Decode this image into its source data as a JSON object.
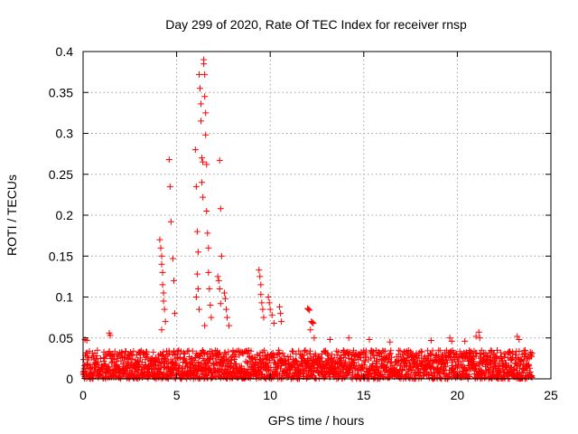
{
  "chart_data": {
    "type": "scatter",
    "title": "Day 299 of 2020, Rate Of TEC Index for receiver rnsp",
    "xlabel": "GPS time / hours",
    "ylabel": "ROTI / TECUs",
    "xlim": [
      0,
      25
    ],
    "ylim": [
      0,
      0.4
    ],
    "x_ticks": [
      0,
      5,
      10,
      15,
      20,
      25
    ],
    "y_ticks": [
      0,
      0.05,
      0.1,
      0.15,
      0.2,
      0.25,
      0.3,
      0.35,
      0.4
    ],
    "x_tick_labels": [
      "0",
      "5",
      "10",
      "15",
      "20",
      "25"
    ],
    "y_tick_labels": [
      "0",
      "0.05",
      "0.1",
      "0.15",
      "0.2",
      "0.25",
      "0.3",
      "0.35",
      "0.4"
    ],
    "grid": true,
    "marker": "+",
    "color": "#ff0000",
    "baseline": {
      "x_range": [
        0,
        24
      ],
      "y_range": [
        0,
        0.035
      ],
      "points_per_hour": 90,
      "note": "dense band of ROTI values between 0 and ~0.035 TECU/s for the whole day"
    },
    "points": [
      {
        "x": 0.1,
        "y": 0.048
      },
      {
        "x": 0.2,
        "y": 0.047
      },
      {
        "x": 1.4,
        "y": 0.056
      },
      {
        "x": 1.45,
        "y": 0.053
      },
      {
        "x": 4.1,
        "y": 0.17
      },
      {
        "x": 4.15,
        "y": 0.16
      },
      {
        "x": 4.2,
        "y": 0.15
      },
      {
        "x": 4.2,
        "y": 0.14
      },
      {
        "x": 4.25,
        "y": 0.13
      },
      {
        "x": 4.25,
        "y": 0.115
      },
      {
        "x": 4.3,
        "y": 0.105
      },
      {
        "x": 4.3,
        "y": 0.095
      },
      {
        "x": 4.35,
        "y": 0.085
      },
      {
        "x": 4.4,
        "y": 0.07
      },
      {
        "x": 4.2,
        "y": 0.06
      },
      {
        "x": 4.6,
        "y": 0.268
      },
      {
        "x": 4.65,
        "y": 0.235
      },
      {
        "x": 4.7,
        "y": 0.192
      },
      {
        "x": 4.8,
        "y": 0.147
      },
      {
        "x": 4.85,
        "y": 0.12
      },
      {
        "x": 4.9,
        "y": 0.08
      },
      {
        "x": 6.0,
        "y": 0.28
      },
      {
        "x": 6.05,
        "y": 0.235
      },
      {
        "x": 6.1,
        "y": 0.18
      },
      {
        "x": 6.15,
        "y": 0.155
      },
      {
        "x": 6.1,
        "y": 0.128
      },
      {
        "x": 6.15,
        "y": 0.11
      },
      {
        "x": 6.05,
        "y": 0.1
      },
      {
        "x": 6.2,
        "y": 0.085
      },
      {
        "x": 6.2,
        "y": 0.372
      },
      {
        "x": 6.25,
        "y": 0.355
      },
      {
        "x": 6.3,
        "y": 0.336
      },
      {
        "x": 6.3,
        "y": 0.315
      },
      {
        "x": 6.35,
        "y": 0.27
      },
      {
        "x": 6.35,
        "y": 0.24
      },
      {
        "x": 6.4,
        "y": 0.265
      },
      {
        "x": 6.4,
        "y": 0.222
      },
      {
        "x": 6.45,
        "y": 0.39
      },
      {
        "x": 6.45,
        "y": 0.385
      },
      {
        "x": 6.5,
        "y": 0.372
      },
      {
        "x": 6.5,
        "y": 0.345
      },
      {
        "x": 6.55,
        "y": 0.325
      },
      {
        "x": 6.55,
        "y": 0.298
      },
      {
        "x": 6.6,
        "y": 0.262
      },
      {
        "x": 6.6,
        "y": 0.205
      },
      {
        "x": 6.65,
        "y": 0.178
      },
      {
        "x": 6.7,
        "y": 0.16
      },
      {
        "x": 6.7,
        "y": 0.13
      },
      {
        "x": 6.75,
        "y": 0.11
      },
      {
        "x": 6.8,
        "y": 0.09
      },
      {
        "x": 6.85,
        "y": 0.075
      },
      {
        "x": 6.5,
        "y": 0.065
      },
      {
        "x": 7.3,
        "y": 0.267
      },
      {
        "x": 7.35,
        "y": 0.208
      },
      {
        "x": 7.4,
        "y": 0.15
      },
      {
        "x": 7.2,
        "y": 0.125
      },
      {
        "x": 7.25,
        "y": 0.12
      },
      {
        "x": 7.3,
        "y": 0.11
      },
      {
        "x": 7.35,
        "y": 0.092
      },
      {
        "x": 7.55,
        "y": 0.105
      },
      {
        "x": 7.6,
        "y": 0.098
      },
      {
        "x": 7.65,
        "y": 0.085
      },
      {
        "x": 7.7,
        "y": 0.075
      },
      {
        "x": 7.8,
        "y": 0.065
      },
      {
        "x": 9.4,
        "y": 0.133
      },
      {
        "x": 9.45,
        "y": 0.125
      },
      {
        "x": 9.5,
        "y": 0.115
      },
      {
        "x": 9.5,
        "y": 0.103
      },
      {
        "x": 9.55,
        "y": 0.093
      },
      {
        "x": 9.6,
        "y": 0.085
      },
      {
        "x": 9.65,
        "y": 0.075
      },
      {
        "x": 9.9,
        "y": 0.1
      },
      {
        "x": 9.95,
        "y": 0.093
      },
      {
        "x": 10.0,
        "y": 0.085
      },
      {
        "x": 10.1,
        "y": 0.078
      },
      {
        "x": 10.2,
        "y": 0.068
      },
      {
        "x": 10.5,
        "y": 0.088
      },
      {
        "x": 10.55,
        "y": 0.08
      },
      {
        "x": 10.6,
        "y": 0.07
      },
      {
        "x": 12.0,
        "y": 0.086
      },
      {
        "x": 12.05,
        "y": 0.085
      },
      {
        "x": 12.1,
        "y": 0.084
      },
      {
        "x": 12.2,
        "y": 0.07
      },
      {
        "x": 12.25,
        "y": 0.069
      },
      {
        "x": 12.3,
        "y": 0.068
      },
      {
        "x": 12.15,
        "y": 0.06
      },
      {
        "x": 12.35,
        "y": 0.05
      },
      {
        "x": 13.2,
        "y": 0.048
      },
      {
        "x": 14.2,
        "y": 0.05
      },
      {
        "x": 15.3,
        "y": 0.048
      },
      {
        "x": 16.4,
        "y": 0.045
      },
      {
        "x": 18.6,
        "y": 0.047
      },
      {
        "x": 19.6,
        "y": 0.05
      },
      {
        "x": 19.7,
        "y": 0.046
      },
      {
        "x": 20.4,
        "y": 0.046
      },
      {
        "x": 21.0,
        "y": 0.052
      },
      {
        "x": 21.15,
        "y": 0.057
      },
      {
        "x": 21.2,
        "y": 0.05
      },
      {
        "x": 23.2,
        "y": 0.052
      },
      {
        "x": 23.3,
        "y": 0.048
      }
    ]
  }
}
